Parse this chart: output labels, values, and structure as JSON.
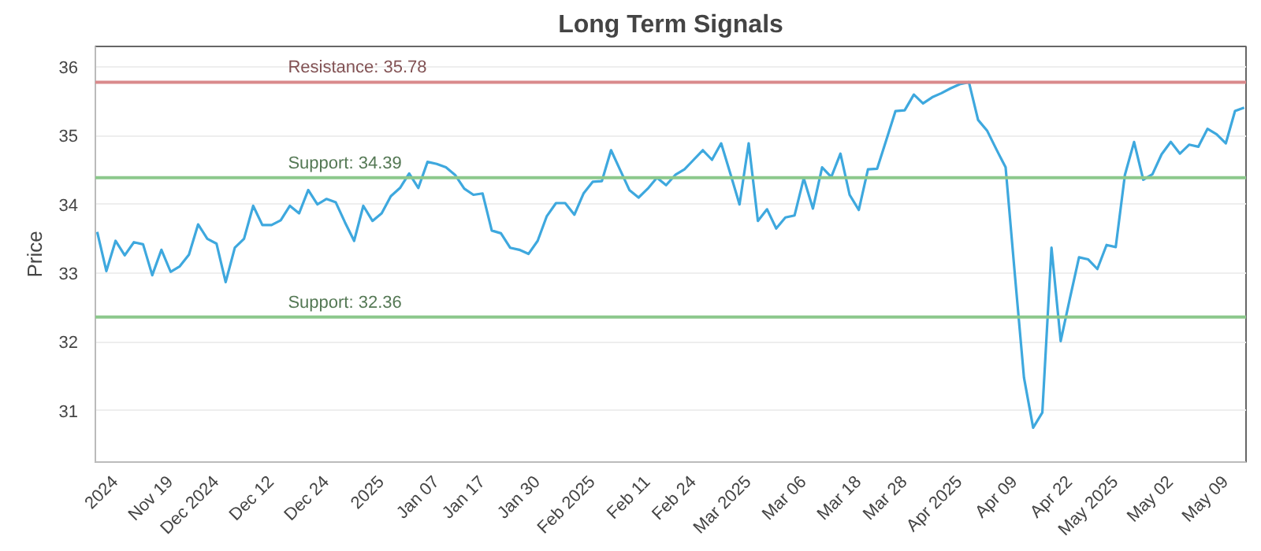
{
  "chart_data": {
    "type": "line",
    "title": "Long Term Signals",
    "ylabel": "Price",
    "categories": [
      null,
      null,
      "2024",
      null,
      null,
      null,
      null,
      null,
      "Nov 19",
      null,
      null,
      null,
      null,
      "Dec 2024",
      null,
      null,
      null,
      null,
      null,
      "Dec 12",
      null,
      null,
      null,
      null,
      null,
      "Dec 24",
      null,
      null,
      null,
      null,
      null,
      "2025",
      null,
      null,
      null,
      null,
      null,
      "Jan 07",
      null,
      null,
      null,
      null,
      "Jan 17",
      null,
      null,
      null,
      null,
      null,
      "Jan 30",
      null,
      null,
      null,
      null,
      null,
      "Feb 2025",
      null,
      null,
      null,
      null,
      null,
      "Feb 11",
      null,
      null,
      null,
      null,
      "Feb 24",
      null,
      null,
      null,
      null,
      null,
      "Mar 2025",
      null,
      null,
      null,
      null,
      null,
      "Mar 06",
      null,
      null,
      null,
      null,
      null,
      "Mar 18",
      null,
      null,
      null,
      null,
      "Mar 28",
      null,
      null,
      null,
      null,
      null,
      "Apr 2025",
      null,
      null,
      null,
      null,
      null,
      "Apr 09",
      null,
      null,
      null,
      null,
      null,
      "Apr 22",
      null,
      null,
      null,
      null,
      "May 2025",
      null,
      null,
      null,
      null,
      null,
      "May 02",
      null,
      null,
      null,
      null,
      null,
      "May 09",
      null,
      null
    ],
    "series": [
      {
        "color": "#3ea8de",
        "values": [
          33.6,
          33.03,
          33.47,
          33.26,
          33.45,
          33.42,
          32.97,
          33.34,
          33.02,
          33.1,
          33.27,
          33.71,
          33.5,
          33.43,
          32.87,
          33.37,
          33.5,
          33.98,
          33.7,
          33.7,
          33.77,
          33.98,
          33.87,
          34.21,
          34.0,
          34.08,
          34.03,
          33.74,
          33.47,
          33.98,
          33.76,
          33.87,
          34.12,
          34.24,
          34.45,
          34.24,
          34.62,
          34.59,
          34.54,
          34.43,
          34.23,
          34.14,
          34.16,
          33.62,
          33.58,
          33.37,
          33.34,
          33.28,
          33.47,
          33.83,
          34.02,
          34.02,
          33.85,
          34.16,
          34.33,
          34.34,
          34.79,
          34.5,
          34.21,
          34.1,
          34.23,
          34.39,
          34.28,
          34.43,
          34.51,
          34.65,
          34.79,
          34.65,
          34.89,
          34.45,
          34.0,
          34.89,
          33.76,
          33.93,
          33.65,
          33.81,
          33.84,
          34.38,
          33.94,
          34.54,
          34.4,
          34.74,
          34.14,
          33.92,
          34.51,
          34.52,
          34.94,
          35.36,
          35.37,
          35.6,
          35.47,
          35.56,
          35.62,
          35.69,
          35.75,
          35.78,
          35.23,
          35.07,
          34.8,
          34.54,
          32.99,
          31.48,
          30.75,
          30.97,
          33.37,
          32.01,
          32.63,
          33.23,
          33.2,
          33.06,
          33.41,
          33.38,
          34.43,
          34.91,
          34.36,
          34.44,
          34.73,
          34.91,
          34.74,
          34.87,
          34.84,
          35.1,
          35.02,
          34.89,
          35.36,
          35.41
        ]
      }
    ],
    "ylim": [
      30.25,
      36.3
    ],
    "yticks": [
      31,
      32,
      33,
      34,
      35,
      36
    ],
    "grid": "y",
    "ref_lines": [
      {
        "axis": "y",
        "value": 35.78,
        "label": "Resistance: 35.78",
        "color": "#d98a8c"
      },
      {
        "axis": "y",
        "value": 34.39,
        "label": "Support: 34.39",
        "color": "#8cc88c"
      },
      {
        "axis": "y",
        "value": 32.36,
        "label": "Support: 32.36",
        "color": "#8cc88c"
      }
    ]
  }
}
